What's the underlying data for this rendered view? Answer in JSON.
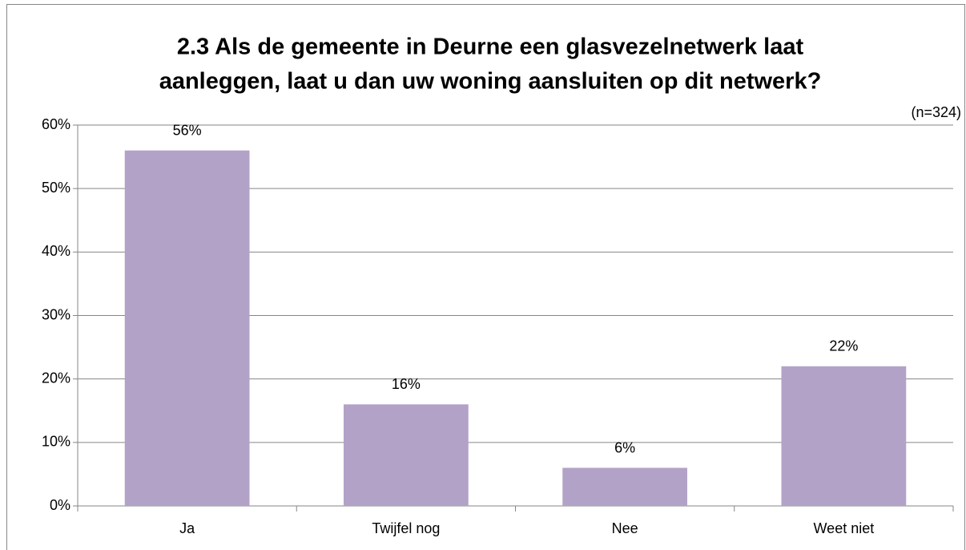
{
  "chart_data": {
    "type": "bar",
    "title": [
      "2.3 Als de gemeente in Deurne een glasvezelnetwerk laat",
      "aanleggen, laat u dan uw woning aansluiten op dit netwerk?"
    ],
    "annotation": "(n=324)",
    "categories": [
      "Ja",
      "Twijfel nog",
      "Nee",
      "Weet niet"
    ],
    "values": [
      56,
      16,
      6,
      22
    ],
    "value_labels": [
      "56%",
      "16%",
      "6%",
      "22%"
    ],
    "color": "#b3a2c7",
    "ylim": [
      0,
      60
    ],
    "yticks": [
      {
        "value": 0,
        "label": "0%"
      },
      {
        "value": 10,
        "label": "10%"
      },
      {
        "value": 20,
        "label": "20%"
      },
      {
        "value": 30,
        "label": "30%"
      },
      {
        "value": 40,
        "label": "40%"
      },
      {
        "value": 50,
        "label": "50%"
      },
      {
        "value": 60,
        "label": "60%"
      }
    ],
    "grid": true
  }
}
